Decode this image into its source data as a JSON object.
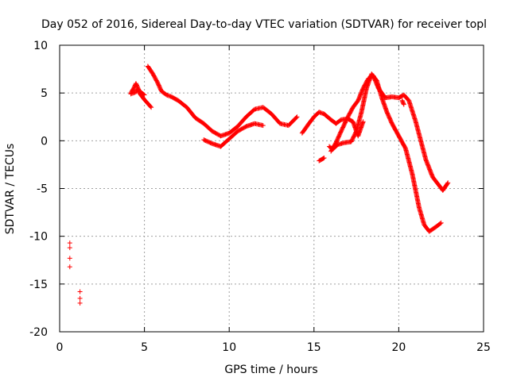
{
  "chart_data": {
    "type": "scatter",
    "title": "Day 052 of 2016, Sidereal Day-to-day VTEC variation (SDTVAR) for receiver topl",
    "xlabel": "GPS time / hours",
    "ylabel": "SDTVAR / TECUs",
    "xlim": [
      0,
      25
    ],
    "ylim": [
      -20,
      10
    ],
    "xticks": [
      "0",
      "5",
      "10",
      "15",
      "20",
      "25"
    ],
    "yticks": [
      "-20",
      "-15",
      "-10",
      "-5",
      "0",
      "5",
      "10"
    ],
    "grid": true,
    "marker": "plus",
    "color": "#ff0000",
    "series": [
      {
        "segments": [
          [
            [
              0.6,
              -10.7
            ],
            [
              0.6,
              -11.2
            ],
            [
              0.6,
              -12.3
            ],
            [
              0.6,
              -13.2
            ]
          ],
          [
            [
              1.2,
              -15.8
            ],
            [
              1.2,
              -16.5
            ],
            [
              1.2,
              -17.0
            ]
          ],
          [
            [
              4.2,
              4.9
            ],
            [
              4.5,
              5.1
            ],
            [
              4.6,
              5.4
            ],
            [
              4.7,
              5.0
            ],
            [
              5.0,
              4.3
            ],
            [
              5.2,
              3.9
            ],
            [
              5.4,
              3.5
            ]
          ],
          [
            [
              4.2,
              5.0
            ],
            [
              4.4,
              5.6
            ],
            [
              4.5,
              6.0
            ],
            [
              4.7,
              5.2
            ],
            [
              5.0,
              4.8
            ]
          ],
          [
            [
              5.2,
              7.8
            ],
            [
              5.5,
              7.0
            ],
            [
              5.8,
              6.0
            ],
            [
              6.0,
              5.2
            ],
            [
              6.3,
              4.8
            ],
            [
              6.6,
              4.6
            ],
            [
              7.0,
              4.2
            ],
            [
              7.5,
              3.5
            ],
            [
              8.0,
              2.4
            ],
            [
              8.5,
              1.8
            ],
            [
              9.0,
              1.0
            ],
            [
              9.5,
              0.5
            ],
            [
              10.0,
              0.8
            ],
            [
              10.5,
              1.5
            ],
            [
              11.0,
              2.5
            ],
            [
              11.5,
              3.3
            ],
            [
              12.0,
              3.5
            ],
            [
              12.5,
              2.8
            ],
            [
              13.0,
              1.8
            ],
            [
              13.5,
              1.6
            ],
            [
              14.0,
              2.5
            ]
          ],
          [
            [
              8.5,
              0.1
            ],
            [
              9.0,
              -0.3
            ],
            [
              9.5,
              -0.6
            ],
            [
              10.0,
              0.2
            ],
            [
              10.5,
              1.0
            ],
            [
              11.0,
              1.5
            ],
            [
              11.5,
              1.8
            ],
            [
              12.0,
              1.6
            ]
          ],
          [
            [
              14.3,
              0.8
            ],
            [
              14.7,
              1.8
            ],
            [
              15.0,
              2.5
            ],
            [
              15.3,
              3.0
            ],
            [
              15.6,
              2.8
            ],
            [
              16.0,
              2.2
            ],
            [
              16.3,
              1.8
            ],
            [
              16.6,
              2.2
            ],
            [
              17.0,
              2.3
            ],
            [
              17.3,
              2.0
            ],
            [
              17.6,
              0.5
            ],
            [
              17.9,
              2.0
            ]
          ],
          [
            [
              15.3,
              -2.1
            ],
            [
              15.6,
              -1.8
            ]
          ],
          [
            [
              15.9,
              -0.6
            ],
            [
              16.1,
              -0.9
            ],
            [
              16.4,
              -0.4
            ],
            [
              16.8,
              -0.2
            ],
            [
              17.2,
              -0.1
            ],
            [
              17.5,
              1.0
            ],
            [
              17.8,
              3.0
            ],
            [
              18.1,
              5.5
            ],
            [
              18.4,
              7.0
            ],
            [
              18.7,
              6.3
            ],
            [
              19.0,
              4.5
            ],
            [
              19.3,
              3.0
            ],
            [
              19.6,
              1.8
            ],
            [
              20.0,
              0.5
            ],
            [
              20.4,
              -0.8
            ],
            [
              20.8,
              -3.5
            ],
            [
              21.2,
              -7.0
            ],
            [
              21.5,
              -8.8
            ],
            [
              21.8,
              -9.5
            ],
            [
              22.2,
              -9.0
            ],
            [
              22.5,
              -8.6
            ]
          ],
          [
            [
              16.0,
              -1.1
            ],
            [
              16.3,
              -0.2
            ],
            [
              16.6,
              1.0
            ],
            [
              17.0,
              2.5
            ],
            [
              17.3,
              3.5
            ],
            [
              17.6,
              4.2
            ],
            [
              17.9,
              5.5
            ],
            [
              18.2,
              6.5
            ],
            [
              18.5,
              6.8
            ],
            [
              18.8,
              5.5
            ],
            [
              19.2,
              4.5
            ],
            [
              19.6,
              4.6
            ],
            [
              20.0,
              4.5
            ],
            [
              20.3,
              4.8
            ],
            [
              20.6,
              4.2
            ],
            [
              21.0,
              2.0
            ],
            [
              21.3,
              0.0
            ],
            [
              21.6,
              -2.0
            ],
            [
              22.0,
              -3.8
            ],
            [
              22.3,
              -4.5
            ],
            [
              22.6,
              -5.2
            ],
            [
              22.9,
              -4.4
            ]
          ],
          [
            [
              20.2,
              4.2
            ],
            [
              20.3,
              3.8
            ]
          ]
        ]
      }
    ]
  }
}
